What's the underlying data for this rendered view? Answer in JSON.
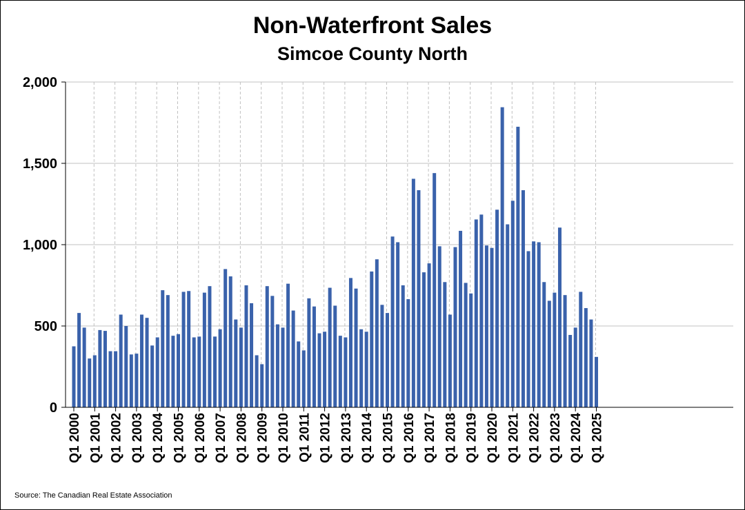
{
  "title": "Non-Waterfront Sales",
  "subtitle": "Simcoe County North",
  "source": "Source: The Canadian Real Estate Association",
  "colors": {
    "bar": "#3a62ab",
    "grid": "#c0c0c0",
    "axis": "#000000"
  },
  "chart_data": {
    "type": "bar",
    "title": "Non-Waterfront Sales",
    "subtitle": "Simcoe County North",
    "xlabel": "",
    "ylabel": "",
    "ylim": [
      0,
      2000
    ],
    "yticks": [
      0,
      500,
      1000,
      1500,
      2000
    ],
    "ytick_labels": [
      "0",
      "500",
      "1,000",
      "1,500",
      "2,000"
    ],
    "grid": "horizontal solid lines at y ticks; vertical dashed lines at each Q1",
    "legend": "none",
    "xtick_labels": [
      "Q1 2000",
      "Q1 2001",
      "Q1 2002",
      "Q1 2003",
      "Q1 2004",
      "Q1 2005",
      "Q1 2006",
      "Q1 2007",
      "Q1 2008",
      "Q1 2009",
      "Q1 2010",
      "Q1 2011",
      "Q1 2012",
      "Q1 2013",
      "Q1 2014",
      "Q1 2015",
      "Q1 2016",
      "Q1 2017",
      "Q1 2018",
      "Q1 2019",
      "Q1 2020",
      "Q1 2021",
      "Q1 2022",
      "Q1 2023",
      "Q1 2024",
      "Q1 2025"
    ],
    "values": [
      375,
      580,
      490,
      300,
      320,
      475,
      470,
      345,
      345,
      570,
      500,
      325,
      330,
      570,
      550,
      380,
      430,
      720,
      690,
      440,
      450,
      710,
      715,
      430,
      435,
      705,
      745,
      435,
      480,
      850,
      805,
      540,
      490,
      750,
      640,
      320,
      265,
      745,
      685,
      510,
      490,
      760,
      595,
      405,
      350,
      670,
      620,
      455,
      465,
      735,
      625,
      440,
      430,
      795,
      730,
      480,
      465,
      835,
      910,
      630,
      580,
      1050,
      1015,
      750,
      665,
      1405,
      1335,
      830,
      885,
      1440,
      990,
      770,
      570,
      985,
      1085,
      765,
      700,
      1155,
      1185,
      995,
      980,
      1215,
      1845,
      1125,
      1270,
      1725,
      1335,
      960,
      1020,
      1015,
      770,
      655,
      705,
      1105,
      690,
      445,
      490,
      710,
      610,
      540,
      310
    ]
  }
}
